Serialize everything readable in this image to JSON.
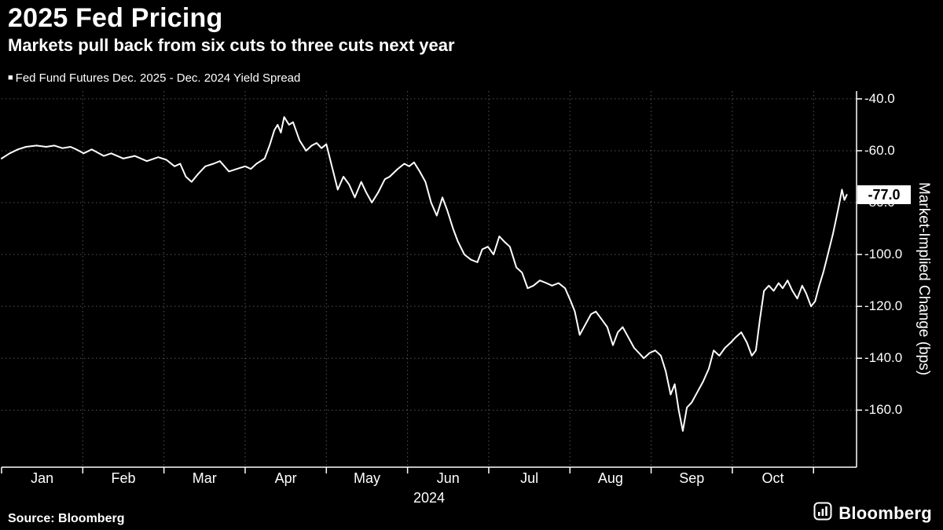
{
  "header": {
    "title": "2025 Fed Pricing",
    "subtitle": "Markets pull back from six cuts to three cuts next year"
  },
  "legend": {
    "marker": "■",
    "label": "Fed Fund Futures Dec. 2025 - Dec. 2024 Yield Spread"
  },
  "chart_data": {
    "type": "line",
    "title": "2025 Fed Pricing",
    "xlabel": "",
    "ylabel": "Market-Implied Change (bps)",
    "x_axis_year": "2024",
    "background": "#000000",
    "line_color": "#ffffff",
    "grid": "dotted",
    "grid_color": "#555555",
    "x_range": [
      0,
      10.53
    ],
    "y_range": [
      -182,
      -37
    ],
    "x_boundaries": [
      1,
      2,
      3,
      4,
      5,
      6,
      7,
      8,
      9,
      10
    ],
    "x_ticks": [
      {
        "pos": 0.5,
        "label": "Jan"
      },
      {
        "pos": 1.5,
        "label": "Feb"
      },
      {
        "pos": 2.5,
        "label": "Mar"
      },
      {
        "pos": 3.5,
        "label": "Apr"
      },
      {
        "pos": 4.5,
        "label": "May"
      },
      {
        "pos": 5.5,
        "label": "Jun"
      },
      {
        "pos": 6.5,
        "label": "Jul"
      },
      {
        "pos": 7.5,
        "label": "Aug"
      },
      {
        "pos": 8.5,
        "label": "Sep"
      },
      {
        "pos": 9.5,
        "label": "Oct"
      }
    ],
    "y_ticks": [
      {
        "value": -40,
        "label": "-40.0"
      },
      {
        "value": -60,
        "label": "-60.0"
      },
      {
        "value": -80,
        "label": "-80.0"
      },
      {
        "value": -100,
        "label": "-100.0"
      },
      {
        "value": -120,
        "label": "-120.0"
      },
      {
        "value": -140,
        "label": "-140.0"
      },
      {
        "value": -160,
        "label": "-160.0"
      }
    ],
    "last_value_badge": {
      "label": "-77.0",
      "value": -77,
      "bg": "#ffffff",
      "fg": "#000000"
    },
    "series": [
      {
        "name": "Fed Fund Futures Dec. 2025 - Dec. 2024 Yield Spread",
        "color": "#ffffff",
        "points": [
          [
            0,
            -63
          ],
          [
            0.1,
            -61
          ],
          [
            0.2,
            -59.5
          ],
          [
            0.3,
            -58.5
          ],
          [
            0.43,
            -58
          ],
          [
            0.55,
            -58.5
          ],
          [
            0.65,
            -58
          ],
          [
            0.75,
            -59
          ],
          [
            0.85,
            -58.5
          ],
          [
            0.92,
            -59.5
          ],
          [
            1.01,
            -61
          ],
          [
            1.11,
            -59.5
          ],
          [
            1.26,
            -62
          ],
          [
            1.35,
            -61
          ],
          [
            1.5,
            -63
          ],
          [
            1.64,
            -62
          ],
          [
            1.79,
            -64
          ],
          [
            1.93,
            -62.5
          ],
          [
            2.03,
            -63.5
          ],
          [
            2.13,
            -66
          ],
          [
            2.2,
            -65
          ],
          [
            2.27,
            -70
          ],
          [
            2.34,
            -72
          ],
          [
            2.42,
            -69
          ],
          [
            2.51,
            -66
          ],
          [
            2.61,
            -65
          ],
          [
            2.69,
            -64
          ],
          [
            2.8,
            -68
          ],
          [
            2.9,
            -67
          ],
          [
            3,
            -66
          ],
          [
            3.07,
            -67
          ],
          [
            3.14,
            -65
          ],
          [
            3.24,
            -63
          ],
          [
            3.3,
            -58
          ],
          [
            3.36,
            -52
          ],
          [
            3.4,
            -50
          ],
          [
            3.44,
            -53
          ],
          [
            3.48,
            -47
          ],
          [
            3.54,
            -50
          ],
          [
            3.59,
            -49
          ],
          [
            3.67,
            -56
          ],
          [
            3.75,
            -60
          ],
          [
            3.82,
            -58
          ],
          [
            3.88,
            -57
          ],
          [
            3.94,
            -59
          ],
          [
            4,
            -57.5
          ],
          [
            4.06,
            -65
          ],
          [
            4.14,
            -75
          ],
          [
            4.21,
            -70
          ],
          [
            4.28,
            -73
          ],
          [
            4.35,
            -78
          ],
          [
            4.43,
            -72
          ],
          [
            4.49,
            -76
          ],
          [
            4.56,
            -80
          ],
          [
            4.64,
            -76
          ],
          [
            4.72,
            -71
          ],
          [
            4.78,
            -70
          ],
          [
            4.88,
            -67
          ],
          [
            4.96,
            -65
          ],
          [
            5.02,
            -66
          ],
          [
            5.08,
            -64.5
          ],
          [
            5.15,
            -68
          ],
          [
            5.22,
            -72
          ],
          [
            5.29,
            -80
          ],
          [
            5.36,
            -85
          ],
          [
            5.43,
            -78
          ],
          [
            5.49,
            -83
          ],
          [
            5.56,
            -90
          ],
          [
            5.62,
            -95
          ],
          [
            5.7,
            -100
          ],
          [
            5.78,
            -102
          ],
          [
            5.86,
            -103
          ],
          [
            5.92,
            -98
          ],
          [
            5.99,
            -97
          ],
          [
            6.06,
            -100
          ],
          [
            6.13,
            -93
          ],
          [
            6.19,
            -95
          ],
          [
            6.26,
            -97
          ],
          [
            6.34,
            -105
          ],
          [
            6.41,
            -107
          ],
          [
            6.48,
            -113
          ],
          [
            6.55,
            -112
          ],
          [
            6.63,
            -110
          ],
          [
            6.71,
            -111
          ],
          [
            6.78,
            -112
          ],
          [
            6.86,
            -111
          ],
          [
            6.94,
            -113
          ],
          [
            7.01,
            -118
          ],
          [
            7.06,
            -122
          ],
          [
            7.12,
            -131
          ],
          [
            7.19,
            -127
          ],
          [
            7.26,
            -123
          ],
          [
            7.32,
            -122
          ],
          [
            7.39,
            -125
          ],
          [
            7.46,
            -128
          ],
          [
            7.53,
            -135
          ],
          [
            7.59,
            -130
          ],
          [
            7.65,
            -128
          ],
          [
            7.72,
            -132
          ],
          [
            7.79,
            -136
          ],
          [
            7.85,
            -138
          ],
          [
            7.91,
            -140
          ],
          [
            7.98,
            -138
          ],
          [
            8.05,
            -137
          ],
          [
            8.12,
            -139
          ],
          [
            8.18,
            -145
          ],
          [
            8.24,
            -154
          ],
          [
            8.29,
            -150
          ],
          [
            8.34,
            -160
          ],
          [
            8.39,
            -168
          ],
          [
            8.44,
            -159
          ],
          [
            8.5,
            -157
          ],
          [
            8.57,
            -153
          ],
          [
            8.64,
            -149
          ],
          [
            8.71,
            -144
          ],
          [
            8.77,
            -137
          ],
          [
            8.84,
            -139
          ],
          [
            8.91,
            -136
          ],
          [
            8.98,
            -134
          ],
          [
            9.04,
            -132
          ],
          [
            9.11,
            -130
          ],
          [
            9.18,
            -134
          ],
          [
            9.24,
            -139
          ],
          [
            9.29,
            -137
          ],
          [
            9.34,
            -125
          ],
          [
            9.39,
            -114
          ],
          [
            9.45,
            -112
          ],
          [
            9.51,
            -114
          ],
          [
            9.57,
            -111
          ],
          [
            9.62,
            -113
          ],
          [
            9.68,
            -110
          ],
          [
            9.74,
            -114
          ],
          [
            9.8,
            -117
          ],
          [
            9.86,
            -112
          ],
          [
            9.91,
            -115
          ],
          [
            9.97,
            -120
          ],
          [
            10.02,
            -118
          ],
          [
            10.07,
            -112
          ],
          [
            10.12,
            -107
          ],
          [
            10.16,
            -102
          ],
          [
            10.2,
            -97
          ],
          [
            10.24,
            -92
          ],
          [
            10.28,
            -86
          ],
          [
            10.32,
            -80
          ],
          [
            10.35,
            -75
          ],
          [
            10.38,
            -79
          ],
          [
            10.41,
            -77
          ]
        ]
      }
    ]
  },
  "footer": {
    "source": "Source: Bloomberg",
    "brand": "Bloomberg"
  }
}
